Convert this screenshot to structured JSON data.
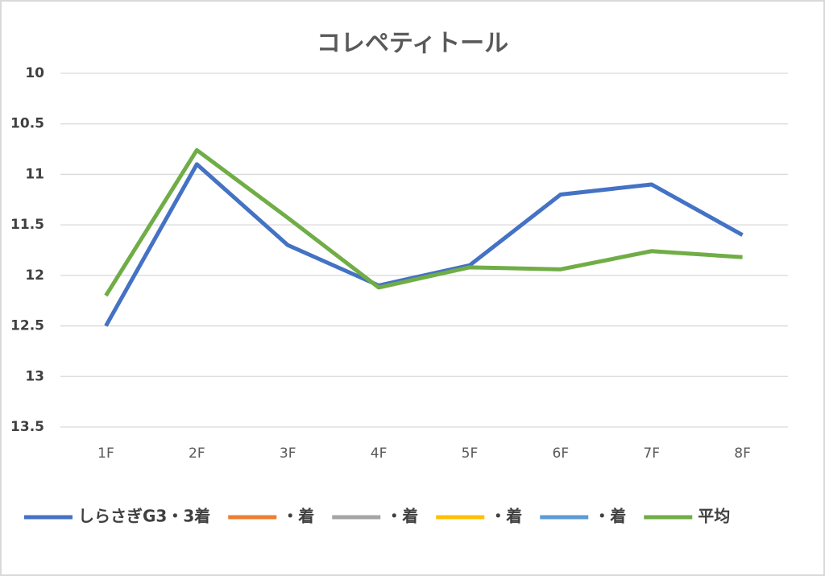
{
  "chart_data": {
    "type": "line",
    "title": "コレペティトール",
    "categories": [
      "1F",
      "2F",
      "3F",
      "4F",
      "5F",
      "6F",
      "7F",
      "8F"
    ],
    "series": [
      {
        "name": "しらさぎG3・3着",
        "color": "#4472c4",
        "values": [
          12.5,
          10.9,
          11.7,
          12.1,
          11.9,
          11.2,
          11.1,
          11.6
        ]
      },
      {
        "name": "・着",
        "color": "#ed7d31",
        "values": [
          null,
          null,
          null,
          null,
          null,
          null,
          null,
          null
        ]
      },
      {
        "name": "・着",
        "color": "#a5a5a5",
        "values": [
          null,
          null,
          null,
          null,
          null,
          null,
          null,
          null
        ]
      },
      {
        "name": "・着",
        "color": "#ffc000",
        "values": [
          null,
          null,
          null,
          null,
          null,
          null,
          null,
          null
        ]
      },
      {
        "name": "・着",
        "color": "#5b9bd5",
        "values": [
          null,
          null,
          null,
          null,
          null,
          null,
          null,
          null
        ]
      },
      {
        "name": "平均",
        "color": "#70ad47",
        "values": [
          12.2,
          10.76,
          11.43,
          12.12,
          11.92,
          11.94,
          11.76,
          11.82
        ]
      }
    ],
    "ylim": [
      10,
      13.5
    ],
    "yticks": [
      10,
      10.5,
      11,
      11.5,
      12,
      12.5,
      13,
      13.5
    ],
    "y_inverted": true,
    "grid": true,
    "legend": "bottom"
  }
}
